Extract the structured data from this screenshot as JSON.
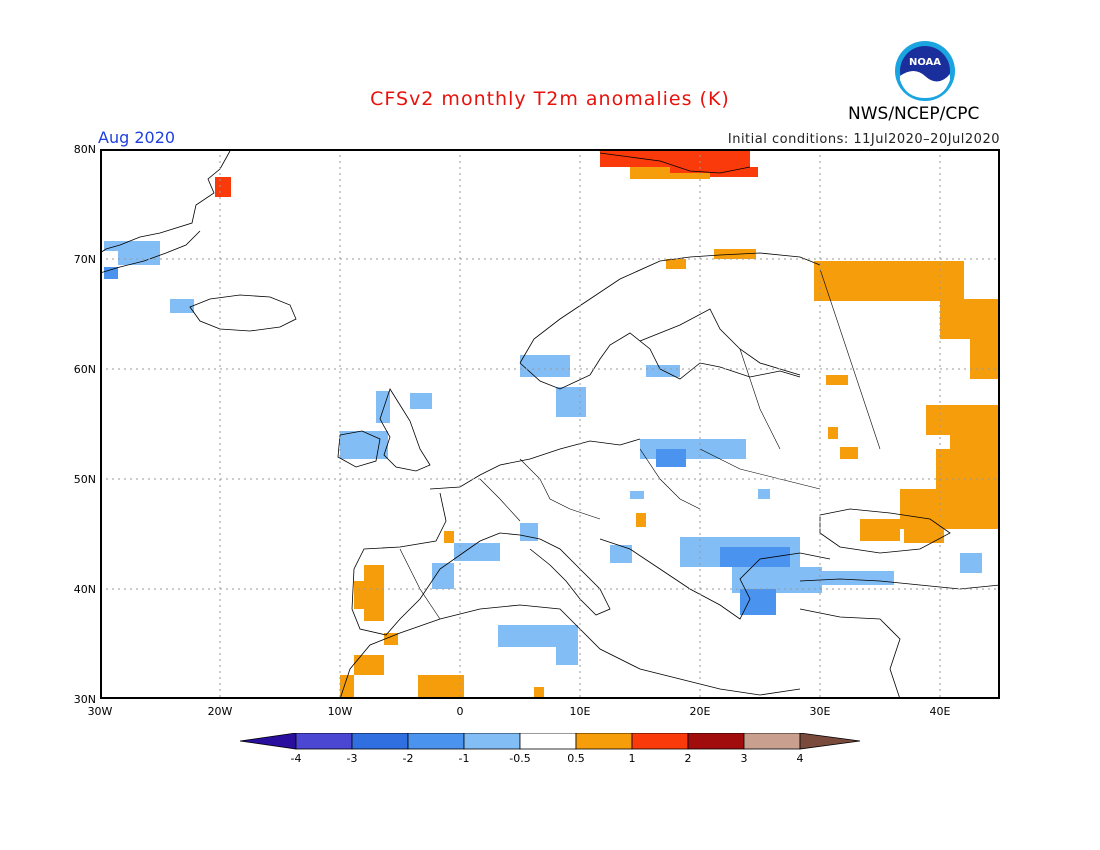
{
  "header": {
    "title": "CFSv2 monthly T2m anomalies (K)",
    "month": "Aug 2020",
    "initial_conditions": "Initial conditions: 11Jul2020–20Jul2020",
    "agency": "NWS/NCEP/CPC",
    "logo_text": "NOAA"
  },
  "map": {
    "lon_range": [
      -30,
      45
    ],
    "lat_range": [
      30,
      80
    ],
    "lat_labels": [
      "80N",
      "70N",
      "60N",
      "50N",
      "40N",
      "30N"
    ],
    "lon_labels": [
      "30W",
      "20W",
      "10W",
      "0",
      "10E",
      "20E",
      "30E",
      "40E"
    ],
    "grid": true
  },
  "colorbar": {
    "labels": [
      "-4",
      "-3",
      "-2",
      "-1",
      "-0.5",
      "0.5",
      "1",
      "2",
      "3",
      "4"
    ],
    "colors": [
      "#2a0f9e",
      "#4b47d2",
      "#2f6fe0",
      "#4a93ee",
      "#83bdf5",
      "#ffffff",
      "#f59d0b",
      "#fb3a0b",
      "#a10c0c",
      "#c9a08f",
      "#7a4a3c"
    ]
  },
  "anomaly_regions": [
    {
      "name": "svalbard-warm",
      "level": 2
    },
    {
      "name": "greenland-east-cool",
      "level": -1
    },
    {
      "name": "ireland-cool",
      "level": -1
    },
    {
      "name": "poland-cool",
      "level": -1
    },
    {
      "name": "balkans-cool",
      "level": -1
    },
    {
      "name": "iberia-warm",
      "level": 1
    },
    {
      "name": "russia-warm",
      "level": 1
    },
    {
      "name": "barents-coast-warm",
      "level": 1
    }
  ]
}
